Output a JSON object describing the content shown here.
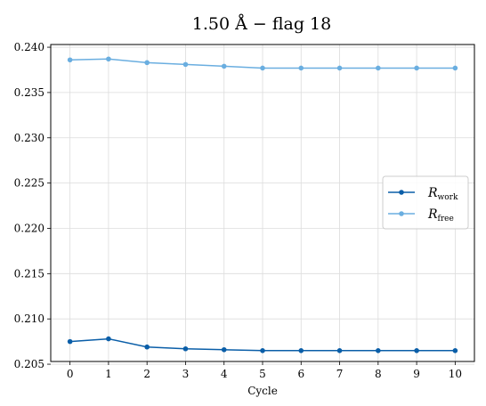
{
  "chart_data": {
    "type": "line",
    "title": "1.50 Å  −  flag 18",
    "xlabel": "Cycle",
    "ylabel": "",
    "x": [
      0,
      1,
      2,
      3,
      4,
      5,
      6,
      7,
      8,
      9,
      10
    ],
    "xticks": [
      "0",
      "1",
      "2",
      "3",
      "4",
      "5",
      "6",
      "7",
      "8",
      "9",
      "10"
    ],
    "xlim": [
      -0.5,
      10.5
    ],
    "ylim": [
      0.2053,
      0.2403
    ],
    "yticks": [
      "0.205",
      "0.210",
      "0.215",
      "0.220",
      "0.225",
      "0.230",
      "0.235",
      "0.240"
    ],
    "ytick_values": [
      0.205,
      0.21,
      0.215,
      0.22,
      0.225,
      0.23,
      0.235,
      0.24
    ],
    "grid": true,
    "legend_position": "center-right",
    "series": [
      {
        "name": "R",
        "subscript": "work",
        "color": "#0a5ea8",
        "values": [
          0.2075,
          0.2078,
          0.2069,
          0.2067,
          0.2066,
          0.2065,
          0.2065,
          0.2065,
          0.2065,
          0.2065,
          0.2065
        ]
      },
      {
        "name": "R",
        "subscript": "free",
        "color": "#6aaee0",
        "values": [
          0.2386,
          0.2387,
          0.2383,
          0.2381,
          0.2379,
          0.2377,
          0.2377,
          0.2377,
          0.2377,
          0.2377,
          0.2377
        ]
      }
    ]
  }
}
